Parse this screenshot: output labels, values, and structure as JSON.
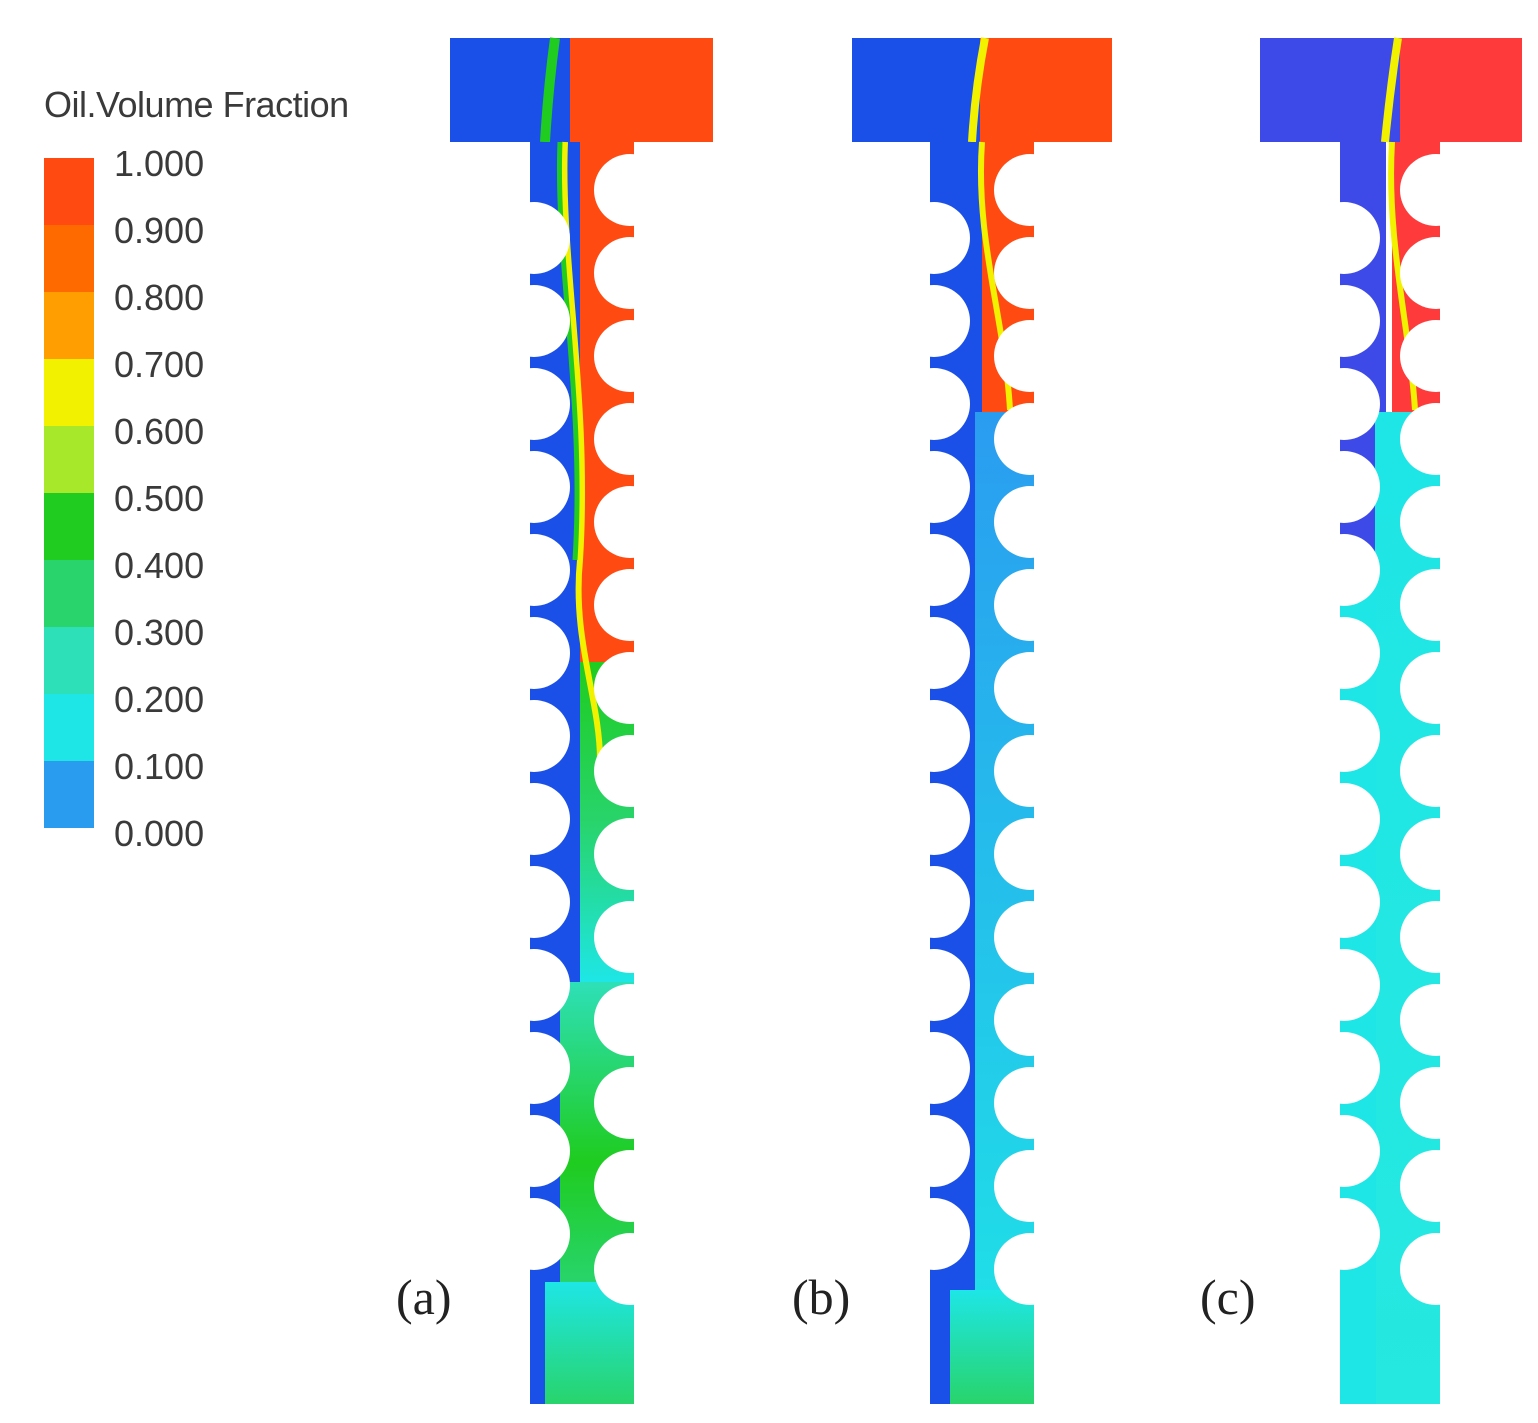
{
  "legend": {
    "title": "Oil.Volume Fraction",
    "ticks": [
      "1.000",
      "0.900",
      "0.800",
      "0.700",
      "0.600",
      "0.500",
      "0.400",
      "0.300",
      "0.200",
      "0.100",
      "0.000"
    ],
    "band_colors": [
      "#ff4a12",
      "#ff6a00",
      "#ff9e00",
      "#f2f200",
      "#a8e82a",
      "#1fcc1f",
      "#28d46b",
      "#2ee0b8",
      "#1ee6e6",
      "#2a9cf0",
      "#1a4fe8"
    ]
  },
  "panels": [
    {
      "label": "(a)",
      "interface_depth": 0.5
    },
    {
      "label": "(b)",
      "interface_depth": 0.25
    },
    {
      "label": "(c)",
      "interface_depth": 0.25
    }
  ],
  "colors": {
    "water": "#1a4fe8",
    "oil": "#ff4a12",
    "mixed_cyan": "#1ee6e6",
    "mixed_green": "#28d46b",
    "background": "#ffffff"
  }
}
